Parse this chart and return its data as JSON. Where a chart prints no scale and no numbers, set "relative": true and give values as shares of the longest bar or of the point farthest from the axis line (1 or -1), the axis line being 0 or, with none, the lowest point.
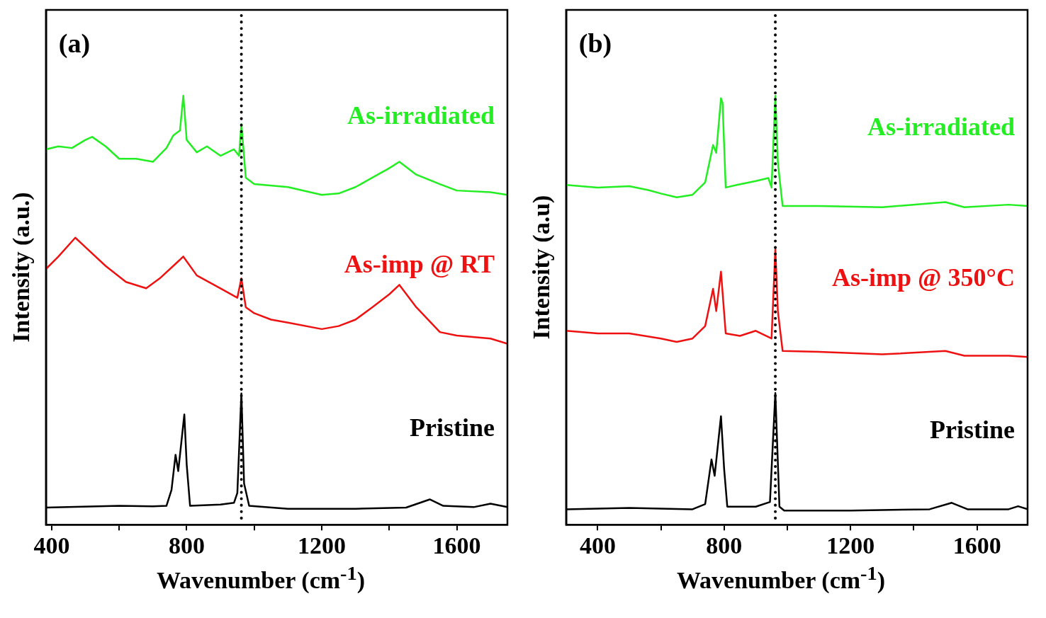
{
  "chart_data": [
    {
      "type": "line",
      "relative": true,
      "xlabel": "Wavenumber (cm$^{-1}$)",
      "ylabel": "Intensity (a.u.)",
      "annotations": [
        "(a)"
      ],
      "xlim": [
        383,
        1750
      ],
      "xticks": [
        400,
        {
          "value": 600,
          "label": null
        },
        800,
        {
          "value": 1000,
          "label": null
        },
        1200,
        {
          "value": 1400,
          "label": null
        },
        1600
      ],
      "grid": false,
      "legend": false,
      "marker": "none",
      "line_style": "solid",
      "ref_lines": [
        {
          "axis": "x",
          "value": 962,
          "color": "#000000",
          "line_style": "dotted"
        }
      ],
      "series": [
        {
          "name": "As-irradiated",
          "color": "#22ee22",
          "x": [
            383,
            420,
            460,
            500,
            520,
            560,
            600,
            650,
            700,
            740,
            760,
            780,
            790,
            800,
            830,
            860,
            900,
            940,
            955,
            962,
            975,
            1000,
            1100,
            1200,
            1250,
            1300,
            1350,
            1400,
            1430,
            1480,
            1550,
            1600,
            1700,
            1750
          ],
          "values": [
            0.875,
            0.882,
            0.878,
            0.897,
            0.904,
            0.882,
            0.853,
            0.853,
            0.846,
            0.878,
            0.907,
            0.919,
            1.0,
            0.897,
            0.868,
            0.882,
            0.86,
            0.875,
            0.86,
            0.934,
            0.809,
            0.794,
            0.787,
            0.769,
            0.772,
            0.787,
            0.809,
            0.831,
            0.846,
            0.816,
            0.794,
            0.779,
            0.775,
            0.769
          ]
        },
        {
          "name": "As-imp @ RT",
          "color": "#ee1111",
          "x": [
            383,
            420,
            470,
            500,
            560,
            620,
            680,
            720,
            760,
            790,
            830,
            900,
            950,
            962,
            975,
            1000,
            1050,
            1100,
            1200,
            1250,
            1300,
            1350,
            1400,
            1430,
            1480,
            1550,
            1600,
            1700,
            1750
          ],
          "values": [
            0.596,
            0.625,
            0.669,
            0.647,
            0.603,
            0.566,
            0.551,
            0.574,
            0.603,
            0.625,
            0.581,
            0.551,
            0.529,
            0.574,
            0.507,
            0.493,
            0.478,
            0.471,
            0.456,
            0.463,
            0.478,
            0.507,
            0.537,
            0.559,
            0.507,
            0.449,
            0.441,
            0.434,
            0.422
          ]
        },
        {
          "name": "Pristine",
          "color": "#000000",
          "x": [
            383,
            600,
            700,
            740,
            755,
            767,
            775,
            793,
            800,
            810,
            900,
            940,
            950,
            962,
            970,
            985,
            1100,
            1300,
            1450,
            1520,
            1560,
            1650,
            1700,
            1750
          ],
          "values": [
            0.04,
            0.044,
            0.043,
            0.044,
            0.081,
            0.163,
            0.125,
            0.257,
            0.14,
            0.044,
            0.047,
            0.051,
            0.074,
            0.306,
            0.096,
            0.044,
            0.037,
            0.037,
            0.04,
            0.059,
            0.044,
            0.041,
            0.049,
            0.041
          ]
        }
      ]
    },
    {
      "type": "line",
      "relative": true,
      "xlabel": "Wavenumber (cm$^{-1}$)",
      "ylabel": "Intensity (a.u)",
      "annotations": [
        "(b)"
      ],
      "xlim": [
        300,
        1760
      ],
      "xticks": [
        400,
        {
          "value": 600,
          "label": null
        },
        800,
        {
          "value": 1000,
          "label": null
        },
        1200,
        {
          "value": 1400,
          "label": null
        },
        1600
      ],
      "grid": false,
      "legend": false,
      "marker": "none",
      "line_style": "solid",
      "ref_lines": [
        {
          "axis": "x",
          "value": 962,
          "color": "#000000",
          "line_style": "dotted"
        }
      ],
      "series": [
        {
          "name": "As-irradiated",
          "color": "#22ee22",
          "x": [
            300,
            400,
            500,
            560,
            600,
            650,
            700,
            740,
            765,
            775,
            790,
            795,
            805,
            840,
            900,
            940,
            950,
            962,
            970,
            985,
            1100,
            1300,
            1500,
            1560,
            1700,
            1760
          ],
          "values": [
            0.792,
            0.786,
            0.789,
            0.78,
            0.772,
            0.763,
            0.769,
            0.798,
            0.885,
            0.867,
            0.994,
            0.983,
            0.786,
            0.792,
            0.801,
            0.808,
            0.786,
            1.0,
            0.844,
            0.743,
            0.743,
            0.74,
            0.752,
            0.74,
            0.746,
            0.743
          ]
        },
        {
          "name": "As-imp @ 350°C",
          "color": "#ee1111",
          "x": [
            300,
            400,
            500,
            600,
            650,
            700,
            740,
            765,
            775,
            790,
            805,
            850,
            900,
            950,
            962,
            970,
            985,
            1100,
            1300,
            1500,
            1560,
            1700,
            1760
          ],
          "values": [
            0.452,
            0.446,
            0.446,
            0.434,
            0.426,
            0.434,
            0.463,
            0.55,
            0.498,
            0.59,
            0.446,
            0.44,
            0.452,
            0.434,
            0.642,
            0.498,
            0.405,
            0.403,
            0.397,
            0.405,
            0.394,
            0.394,
            0.391
          ]
        },
        {
          "name": "Pristine",
          "color": "#000000",
          "x": [
            300,
            500,
            700,
            740,
            760,
            770,
            790,
            800,
            810,
            900,
            945,
            962,
            975,
            990,
            1200,
            1450,
            1520,
            1570,
            1700,
            1730,
            1760
          ],
          "values": [
            0.036,
            0.039,
            0.036,
            0.048,
            0.152,
            0.114,
            0.253,
            0.13,
            0.042,
            0.042,
            0.053,
            0.307,
            0.042,
            0.033,
            0.033,
            0.036,
            0.051,
            0.036,
            0.036,
            0.043,
            0.036
          ]
        }
      ]
    }
  ]
}
